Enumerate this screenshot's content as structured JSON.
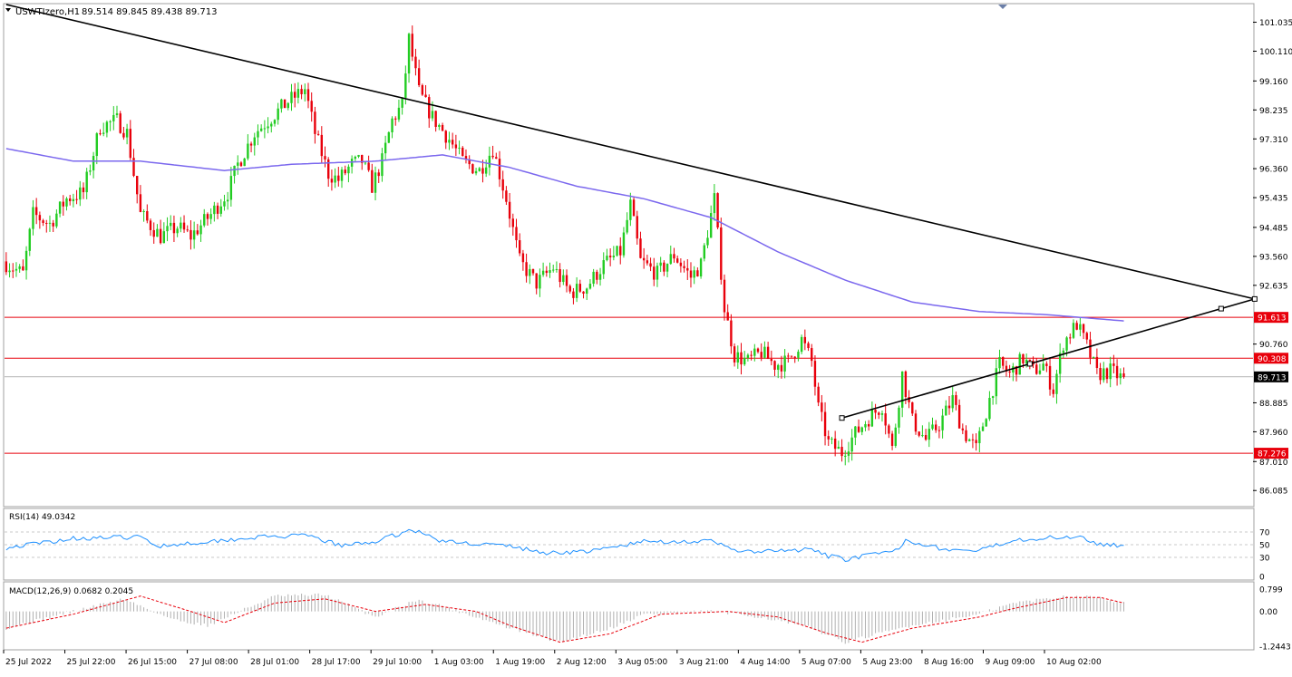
{
  "header": {
    "symbol_label": "USWTIzero,H1",
    "ohlc_label": "89.514 89.845 89.438 89.713"
  },
  "rsi": {
    "label": "RSI(14) 49.0342",
    "levels": [
      "70",
      "50",
      "30",
      "0"
    ]
  },
  "macd": {
    "label": "MACD(12,26,9) 0.0682 0.2045",
    "levels": [
      "0.799",
      "0.00",
      "-1.2443"
    ]
  },
  "colors": {
    "bull": "#22cc22",
    "bear": "#e8000b",
    "ma": "#7b68ee",
    "trendline": "#000000",
    "level_line": "#e8000b",
    "rsi_line": "#1e90ff",
    "macd_hist": "#b0b0b0",
    "macd_signal": "#e8000b"
  },
  "chart_data": {
    "type": "candlestick",
    "symbol": "USWTIzero",
    "timeframe": "H1",
    "ylim": [
      85.6,
      101.6
    ],
    "y_ticks": [
      "101.035",
      "100.110",
      "99.160",
      "98.235",
      "97.310",
      "96.360",
      "95.435",
      "94.485",
      "93.560",
      "92.635",
      "90.760",
      "88.885",
      "87.960",
      "87.010",
      "86.085"
    ],
    "x_ticks": [
      "25 Jul 2022",
      "25 Jul 22:00",
      "26 Jul 15:00",
      "27 Jul 08:00",
      "28 Jul 01:00",
      "28 Jul 17:00",
      "29 Jul 10:00",
      "1 Aug 03:00",
      "1 Aug 19:00",
      "2 Aug 12:00",
      "3 Aug 05:00",
      "3 Aug 21:00",
      "4 Aug 14:00",
      "5 Aug 07:00",
      "5 Aug 23:00",
      "8 Aug 16:00",
      "9 Aug 09:00",
      "10 Aug 02:00"
    ],
    "price_path": [
      [
        0,
        93.4
      ],
      [
        3,
        93.2
      ],
      [
        6,
        93.0
      ],
      [
        9,
        94.9
      ],
      [
        14,
        94.6
      ],
      [
        19,
        95.4
      ],
      [
        24,
        95.6
      ],
      [
        29,
        97.7
      ],
      [
        34,
        97.9
      ],
      [
        37,
        97.5
      ],
      [
        41,
        94.9
      ],
      [
        47,
        94.2
      ],
      [
        52,
        94.5
      ],
      [
        56,
        94.2
      ],
      [
        62,
        94.9
      ],
      [
        67,
        95.6
      ],
      [
        70,
        96.5
      ],
      [
        75,
        97.5
      ],
      [
        80,
        98.0
      ],
      [
        85,
        98.5
      ],
      [
        90,
        98.9
      ],
      [
        93,
        97.5
      ],
      [
        97,
        96.2
      ],
      [
        100,
        96.0
      ],
      [
        104,
        96.5
      ],
      [
        107,
        96.6
      ],
      [
        110,
        95.8
      ],
      [
        113,
        96.6
      ],
      [
        116,
        97.9
      ],
      [
        119,
        98.4
      ],
      [
        121,
        100.5
      ],
      [
        124,
        98.8
      ],
      [
        128,
        98.0
      ],
      [
        133,
        97.3
      ],
      [
        137,
        96.6
      ],
      [
        142,
        96.3
      ],
      [
        146,
        97.0
      ],
      [
        150,
        95.4
      ],
      [
        154,
        93.4
      ],
      [
        159,
        92.7
      ],
      [
        164,
        93.2
      ],
      [
        169,
        92.4
      ],
      [
        174,
        92.6
      ],
      [
        179,
        93.3
      ],
      [
        184,
        93.7
      ],
      [
        187,
        95.2
      ],
      [
        190,
        93.4
      ],
      [
        195,
        93.0
      ],
      [
        200,
        93.6
      ],
      [
        205,
        92.9
      ],
      [
        208,
        93.3
      ],
      [
        212,
        95.4
      ],
      [
        215,
        91.9
      ],
      [
        218,
        90.4
      ],
      [
        222,
        90.2
      ],
      [
        226,
        90.5
      ],
      [
        230,
        90.1
      ],
      [
        234,
        90.2
      ],
      [
        238,
        90.9
      ],
      [
        241,
        90.2
      ],
      [
        243,
        88.7
      ],
      [
        246,
        87.6
      ],
      [
        250,
        87.3
      ],
      [
        254,
        87.9
      ],
      [
        258,
        88.4
      ],
      [
        262,
        88.8
      ],
      [
        265,
        87.4
      ],
      [
        268,
        89.8
      ],
      [
        271,
        88.3
      ],
      [
        275,
        87.7
      ],
      [
        279,
        88.2
      ],
      [
        283,
        89.0
      ],
      [
        286,
        88.0
      ],
      [
        290,
        87.4
      ],
      [
        294,
        89.0
      ],
      [
        297,
        90.1
      ],
      [
        300,
        89.8
      ],
      [
        304,
        90.3
      ],
      [
        307,
        89.9
      ],
      [
        310,
        90.1
      ],
      [
        313,
        89.3
      ],
      [
        316,
        90.8
      ],
      [
        320,
        91.4
      ],
      [
        323,
        90.7
      ],
      [
        326,
        89.8
      ],
      [
        330,
        89.9
      ],
      [
        333,
        89.7
      ]
    ],
    "series": [
      {
        "name": "MA",
        "values": [
          [
            0,
            97.0
          ],
          [
            20,
            96.6
          ],
          [
            40,
            96.6
          ],
          [
            65,
            96.3
          ],
          [
            85,
            96.5
          ],
          [
            110,
            96.6
          ],
          [
            130,
            96.8
          ],
          [
            150,
            96.4
          ],
          [
            170,
            95.8
          ],
          [
            190,
            95.4
          ],
          [
            210,
            94.8
          ],
          [
            230,
            93.7
          ],
          [
            250,
            92.8
          ],
          [
            270,
            92.1
          ],
          [
            290,
            91.8
          ],
          [
            310,
            91.7
          ],
          [
            333,
            91.5
          ]
        ]
      },
      {
        "name": "RSI(14)",
        "values": [
          [
            0,
            45
          ],
          [
            20,
            60
          ],
          [
            40,
            62
          ],
          [
            45,
            48
          ],
          [
            60,
            55
          ],
          [
            75,
            62
          ],
          [
            90,
            64
          ],
          [
            100,
            48
          ],
          [
            110,
            55
          ],
          [
            121,
            74
          ],
          [
            130,
            55
          ],
          [
            150,
            48
          ],
          [
            160,
            37
          ],
          [
            175,
            40
          ],
          [
            190,
            55
          ],
          [
            210,
            55
          ],
          [
            220,
            38
          ],
          [
            240,
            42
          ],
          [
            245,
            32
          ],
          [
            250,
            27
          ],
          [
            265,
            40
          ],
          [
            268,
            58
          ],
          [
            280,
            42
          ],
          [
            290,
            40
          ],
          [
            300,
            58
          ],
          [
            316,
            62
          ],
          [
            320,
            64
          ],
          [
            326,
            50
          ],
          [
            333,
            49
          ]
        ]
      },
      {
        "name": "MACD",
        "values": [
          [
            0,
            -0.6
          ],
          [
            20,
            0.0
          ],
          [
            35,
            0.45
          ],
          [
            50,
            -0.3
          ],
          [
            60,
            -0.5
          ],
          [
            80,
            0.55
          ],
          [
            95,
            0.6
          ],
          [
            110,
            -0.2
          ],
          [
            122,
            0.4
          ],
          [
            130,
            0.2
          ],
          [
            150,
            -0.6
          ],
          [
            165,
            -1.1
          ],
          [
            180,
            -0.6
          ],
          [
            190,
            -0.1
          ],
          [
            210,
            0.0
          ],
          [
            225,
            -0.2
          ],
          [
            240,
            -0.6
          ],
          [
            250,
            -1.1
          ],
          [
            270,
            -0.5
          ],
          [
            290,
            -0.1
          ],
          [
            300,
            0.3
          ],
          [
            316,
            0.55
          ],
          [
            326,
            0.5
          ],
          [
            333,
            0.3
          ]
        ]
      }
    ],
    "signal_line": [
      [
        0,
        -0.6
      ],
      [
        20,
        -0.1
      ],
      [
        40,
        0.55
      ],
      [
        55,
        0.0
      ],
      [
        65,
        -0.4
      ],
      [
        80,
        0.3
      ],
      [
        95,
        0.45
      ],
      [
        110,
        0.0
      ],
      [
        125,
        0.25
      ],
      [
        140,
        0.0
      ],
      [
        150,
        -0.5
      ],
      [
        165,
        -1.1
      ],
      [
        180,
        -0.8
      ],
      [
        195,
        -0.1
      ],
      [
        215,
        0.0
      ],
      [
        230,
        -0.2
      ],
      [
        245,
        -0.8
      ],
      [
        255,
        -1.1
      ],
      [
        270,
        -0.6
      ],
      [
        290,
        -0.2
      ],
      [
        300,
        0.1
      ],
      [
        316,
        0.5
      ],
      [
        326,
        0.5
      ],
      [
        333,
        0.3
      ]
    ],
    "horizontal_levels": [
      91.613,
      90.308,
      87.276
    ],
    "current_price": 89.713,
    "trendlines": [
      {
        "from": [
          0,
          101.6
        ],
        "to": [
          372,
          92.2
        ]
      },
      {
        "from": [
          249,
          88.4
        ],
        "to": [
          372,
          92.2
        ]
      }
    ],
    "indicator_ranges": {
      "rsi": [
        0,
        100
      ],
      "macd": [
        -1.2443,
        0.799
      ]
    }
  }
}
